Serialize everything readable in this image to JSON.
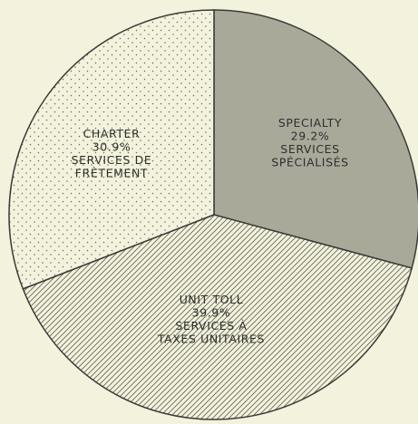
{
  "chart_data": {
    "type": "pie",
    "title": "",
    "slices": [
      {
        "key": "specialty",
        "value": 29.2,
        "label_lines": [
          "SPECIALTY",
          "29.2%",
          "SERVICES",
          "SPÉCIALISÉS"
        ],
        "fill": "#a9a99a",
        "pattern": "solid"
      },
      {
        "key": "unit-toll",
        "value": 39.9,
        "label_lines": [
          "UNIT TOLL",
          "39.9%",
          "SERVICES À",
          "TAXES UNITAIRES"
        ],
        "fill": "#f3f2dc",
        "pattern": "diagonal-hatch"
      },
      {
        "key": "charter",
        "value": 30.9,
        "label_lines": [
          "CHARTER",
          "30.9%",
          "SERVICES DE",
          "FRÈTEMENT"
        ],
        "fill": "#f3f2dc",
        "pattern": "dots"
      }
    ],
    "start_angle_deg": 0,
    "direction": "clockwise",
    "legend": "none"
  }
}
